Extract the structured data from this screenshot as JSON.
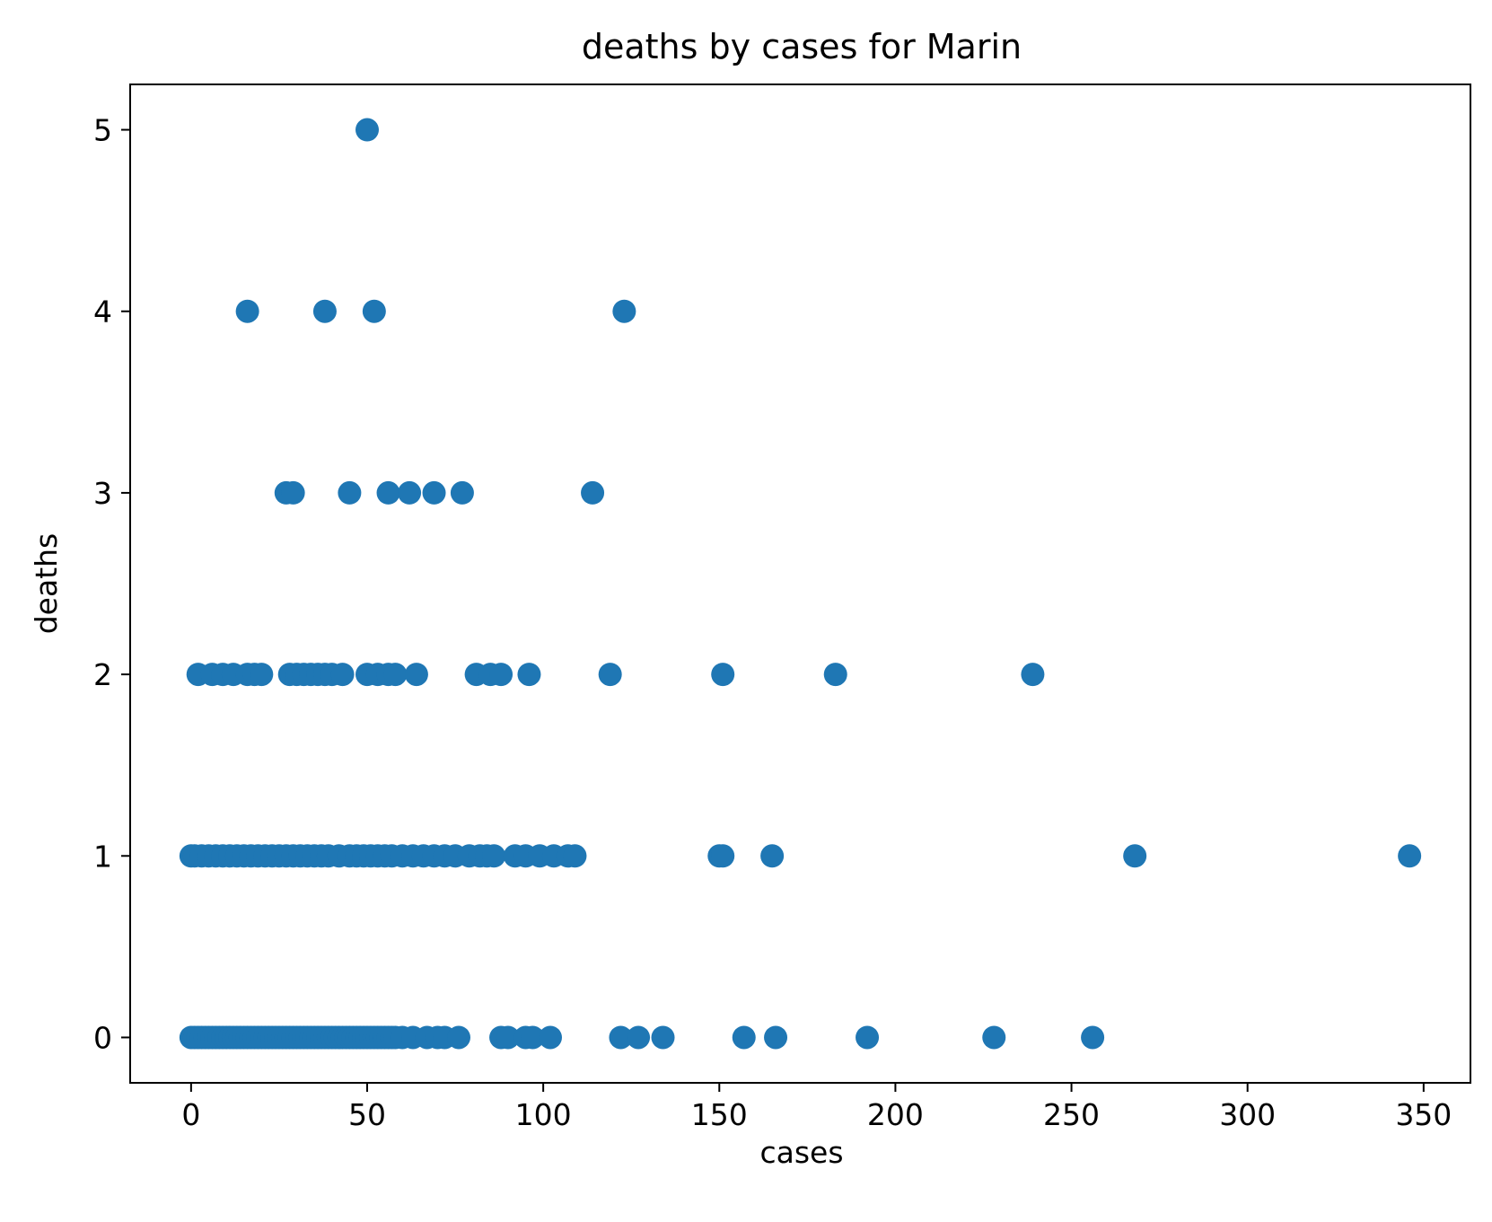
{
  "chart_data": {
    "type": "scatter",
    "title": "deaths by cases for Marin",
    "xlabel": "cases",
    "ylabel": "deaths",
    "xlim": [
      -17.3,
      363.3
    ],
    "ylim": [
      -0.25,
      5.25
    ],
    "x_ticks": [
      0,
      50,
      100,
      150,
      200,
      250,
      300,
      350
    ],
    "x_tick_labels": [
      "0",
      "50",
      "100",
      "150",
      "200",
      "250",
      "300",
      "350"
    ],
    "y_ticks": [
      0,
      1,
      2,
      3,
      4,
      5
    ],
    "y_tick_labels": [
      "0",
      "1",
      "2",
      "3",
      "4",
      "5"
    ],
    "grid": false,
    "marker_color": "#1f77b4",
    "points": [
      [
        50,
        5
      ],
      [
        16,
        4
      ],
      [
        38,
        4
      ],
      [
        52,
        4
      ],
      [
        123,
        4
      ],
      [
        27,
        3
      ],
      [
        29,
        3
      ],
      [
        45,
        3
      ],
      [
        56,
        3
      ],
      [
        62,
        3
      ],
      [
        69,
        3
      ],
      [
        77,
        3
      ],
      [
        114,
        3
      ],
      [
        2,
        2
      ],
      [
        6,
        2
      ],
      [
        9,
        2
      ],
      [
        12,
        2
      ],
      [
        16,
        2
      ],
      [
        18,
        2
      ],
      [
        20,
        2
      ],
      [
        28,
        2
      ],
      [
        30,
        2
      ],
      [
        32,
        2
      ],
      [
        34,
        2
      ],
      [
        36,
        2
      ],
      [
        38,
        2
      ],
      [
        40,
        2
      ],
      [
        43,
        2
      ],
      [
        50,
        2
      ],
      [
        53,
        2
      ],
      [
        56,
        2
      ],
      [
        58,
        2
      ],
      [
        64,
        2
      ],
      [
        81,
        2
      ],
      [
        85,
        2
      ],
      [
        88,
        2
      ],
      [
        96,
        2
      ],
      [
        119,
        2
      ],
      [
        151,
        2
      ],
      [
        183,
        2
      ],
      [
        239,
        2
      ],
      [
        0,
        1
      ],
      [
        1,
        1
      ],
      [
        3,
        1
      ],
      [
        5,
        1
      ],
      [
        7,
        1
      ],
      [
        9,
        1
      ],
      [
        11,
        1
      ],
      [
        13,
        1
      ],
      [
        15,
        1
      ],
      [
        17,
        1
      ],
      [
        19,
        1
      ],
      [
        21,
        1
      ],
      [
        23,
        1
      ],
      [
        25,
        1
      ],
      [
        27,
        1
      ],
      [
        29,
        1
      ],
      [
        31,
        1
      ],
      [
        33,
        1
      ],
      [
        35,
        1
      ],
      [
        37,
        1
      ],
      [
        39,
        1
      ],
      [
        42,
        1
      ],
      [
        45,
        1
      ],
      [
        47,
        1
      ],
      [
        49,
        1
      ],
      [
        51,
        1
      ],
      [
        53,
        1
      ],
      [
        55,
        1
      ],
      [
        57,
        1
      ],
      [
        60,
        1
      ],
      [
        63,
        1
      ],
      [
        66,
        1
      ],
      [
        69,
        1
      ],
      [
        72,
        1
      ],
      [
        75,
        1
      ],
      [
        79,
        1
      ],
      [
        82,
        1
      ],
      [
        84,
        1
      ],
      [
        86,
        1
      ],
      [
        92,
        1
      ],
      [
        95,
        1
      ],
      [
        99,
        1
      ],
      [
        103,
        1
      ],
      [
        107,
        1
      ],
      [
        109,
        1
      ],
      [
        150,
        1
      ],
      [
        151,
        1
      ],
      [
        165,
        1
      ],
      [
        268,
        1
      ],
      [
        346,
        1
      ],
      [
        0,
        0
      ],
      [
        1,
        0
      ],
      [
        2,
        0
      ],
      [
        3,
        0
      ],
      [
        4,
        0
      ],
      [
        5,
        0
      ],
      [
        6,
        0
      ],
      [
        7,
        0
      ],
      [
        8,
        0
      ],
      [
        9,
        0
      ],
      [
        10,
        0
      ],
      [
        11,
        0
      ],
      [
        12,
        0
      ],
      [
        13,
        0
      ],
      [
        14,
        0
      ],
      [
        15,
        0
      ],
      [
        16,
        0
      ],
      [
        17,
        0
      ],
      [
        18,
        0
      ],
      [
        19,
        0
      ],
      [
        20,
        0
      ],
      [
        21,
        0
      ],
      [
        22,
        0
      ],
      [
        23,
        0
      ],
      [
        24,
        0
      ],
      [
        25,
        0
      ],
      [
        26,
        0
      ],
      [
        27,
        0
      ],
      [
        28,
        0
      ],
      [
        29,
        0
      ],
      [
        30,
        0
      ],
      [
        31,
        0
      ],
      [
        32,
        0
      ],
      [
        33,
        0
      ],
      [
        34,
        0
      ],
      [
        35,
        0
      ],
      [
        36,
        0
      ],
      [
        37,
        0
      ],
      [
        38,
        0
      ],
      [
        39,
        0
      ],
      [
        40,
        0
      ],
      [
        41,
        0
      ],
      [
        42,
        0
      ],
      [
        43,
        0
      ],
      [
        44,
        0
      ],
      [
        45,
        0
      ],
      [
        46,
        0
      ],
      [
        47,
        0
      ],
      [
        48,
        0
      ],
      [
        49,
        0
      ],
      [
        50,
        0
      ],
      [
        51,
        0
      ],
      [
        52,
        0
      ],
      [
        53,
        0
      ],
      [
        54,
        0
      ],
      [
        55,
        0
      ],
      [
        56,
        0
      ],
      [
        57,
        0
      ],
      [
        58,
        0
      ],
      [
        60,
        0
      ],
      [
        63,
        0
      ],
      [
        67,
        0
      ],
      [
        70,
        0
      ],
      [
        72,
        0
      ],
      [
        76,
        0
      ],
      [
        88,
        0
      ],
      [
        90,
        0
      ],
      [
        95,
        0
      ],
      [
        97,
        0
      ],
      [
        102,
        0
      ],
      [
        122,
        0
      ],
      [
        127,
        0
      ],
      [
        134,
        0
      ],
      [
        157,
        0
      ],
      [
        166,
        0
      ],
      [
        192,
        0
      ],
      [
        228,
        0
      ],
      [
        256,
        0
      ]
    ]
  }
}
